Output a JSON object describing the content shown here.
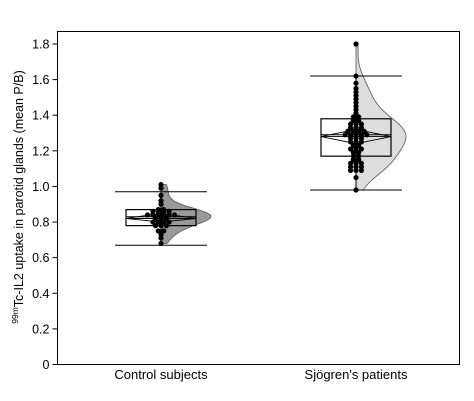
{
  "chart_data": {
    "type": "scatter",
    "subtype": "raincloud (half-violin + box + dot plot)",
    "ylabel": {
      "sup1": "99",
      "sub1": "m",
      "main": "Tc-IL2 uptake in parotid glands (mean P/B)"
    },
    "ylim": [
      0,
      1.9
    ],
    "yticks": [
      "0",
      "0.2",
      "0.4",
      "0.6",
      "0.8",
      "1.0",
      "1.2",
      "1.4",
      "1.6",
      "1.8"
    ],
    "grid": false,
    "categories": [
      "Control subjects",
      "Sjögren's patients"
    ],
    "groups": [
      {
        "name": "Control subjects",
        "color": "#999999",
        "whisker_low": 0.67,
        "q1": 0.78,
        "median": 0.83,
        "mean": 0.82,
        "q3": 0.87,
        "whisker_high": 0.97,
        "ci": [
          0.8,
          0.85
        ],
        "points": [
          0.68,
          0.71,
          0.73,
          0.75,
          0.75,
          0.78,
          0.78,
          0.78,
          0.8,
          0.8,
          0.8,
          0.8,
          0.82,
          0.82,
          0.82,
          0.83,
          0.83,
          0.83,
          0.84,
          0.84,
          0.84,
          0.84,
          0.84,
          0.84,
          0.86,
          0.86,
          0.86,
          0.86,
          0.87,
          0.87,
          0.9,
          0.92,
          0.95,
          0.99,
          1.01
        ]
      },
      {
        "name": "Sjögren's patients",
        "color": "#dddddd",
        "whisker_low": 0.98,
        "q1": 1.17,
        "median": 1.29,
        "mean": 1.28,
        "q3": 1.38,
        "whisker_high": 1.62,
        "ci": [
          1.24,
          1.32
        ],
        "points": [
          0.98,
          1.05,
          1.09,
          1.09,
          1.09,
          1.11,
          1.11,
          1.11,
          1.13,
          1.13,
          1.13,
          1.15,
          1.15,
          1.17,
          1.17,
          1.19,
          1.19,
          1.21,
          1.21,
          1.21,
          1.23,
          1.23,
          1.25,
          1.25,
          1.25,
          1.27,
          1.27,
          1.27,
          1.29,
          1.29,
          1.29,
          1.29,
          1.29,
          1.31,
          1.31,
          1.31,
          1.31,
          1.33,
          1.33,
          1.33,
          1.35,
          1.35,
          1.35,
          1.37,
          1.37,
          1.39,
          1.39,
          1.41,
          1.43,
          1.45,
          1.47,
          1.49,
          1.51,
          1.53,
          1.55,
          1.58,
          1.62,
          1.8
        ]
      }
    ]
  }
}
